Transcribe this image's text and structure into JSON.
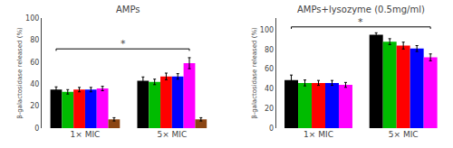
{
  "chart_data": [
    {
      "type": "bar",
      "title": "AMPs",
      "categories": [
        "1× MIC",
        "5× MIC"
      ],
      "series": [
        {
          "color": "black",
          "values": [
            35,
            43
          ],
          "errors": [
            2.5,
            3.5
          ]
        },
        {
          "color": "#00bb00",
          "values": [
            33,
            42
          ],
          "errors": [
            2.0,
            2.5
          ]
        },
        {
          "color": "red",
          "values": [
            35,
            47
          ],
          "errors": [
            2.0,
            3.0
          ]
        },
        {
          "color": "blue",
          "values": [
            35,
            47
          ],
          "errors": [
            2.0,
            2.5
          ]
        },
        {
          "color": "magenta",
          "values": [
            36,
            59
          ],
          "errors": [
            2.0,
            5.0
          ]
        },
        {
          "color": "#8B4513",
          "values": [
            8,
            8
          ],
          "errors": [
            1.5,
            1.5
          ]
        }
      ],
      "ylabel": "β-galactosidase released (%)",
      "ylim": [
        0,
        100
      ],
      "yticks": [
        0,
        20,
        40,
        60,
        80,
        100
      ],
      "grid": false,
      "annotations": [
        {
          "text": "*",
          "y": 72,
          "from": {
            "category": "1× MIC",
            "series": 0
          },
          "to": {
            "category": "5× MIC",
            "series": 4
          }
        }
      ]
    },
    {
      "type": "bar",
      "title": "AMPs+lysozyme (0.5mg/ml)",
      "categories": [
        "1× MIC",
        "5× MIC"
      ],
      "series": [
        {
          "color": "black",
          "values": [
            49,
            95
          ],
          "errors": [
            5.0,
            2.0
          ]
        },
        {
          "color": "#00bb00",
          "values": [
            46,
            88
          ],
          "errors": [
            3.0,
            3.0
          ]
        },
        {
          "color": "red",
          "values": [
            46,
            84
          ],
          "errors": [
            2.5,
            3.5
          ]
        },
        {
          "color": "blue",
          "values": [
            46,
            81
          ],
          "errors": [
            2.5,
            3.0
          ]
        },
        {
          "color": "magenta",
          "values": [
            44,
            72
          ],
          "errors": [
            2.5,
            3.5
          ]
        }
      ],
      "ylabel": "β-galactosidase released (%)",
      "ylim": [
        0,
        112
      ],
      "yticks": [
        0,
        20,
        40,
        60,
        80,
        100
      ],
      "grid": false,
      "annotations": [
        {
          "text": "*",
          "y": 103,
          "from": {
            "category": "1× MIC",
            "series": 0
          },
          "to": {
            "category": "5× MIC",
            "series": 4
          }
        }
      ]
    }
  ]
}
